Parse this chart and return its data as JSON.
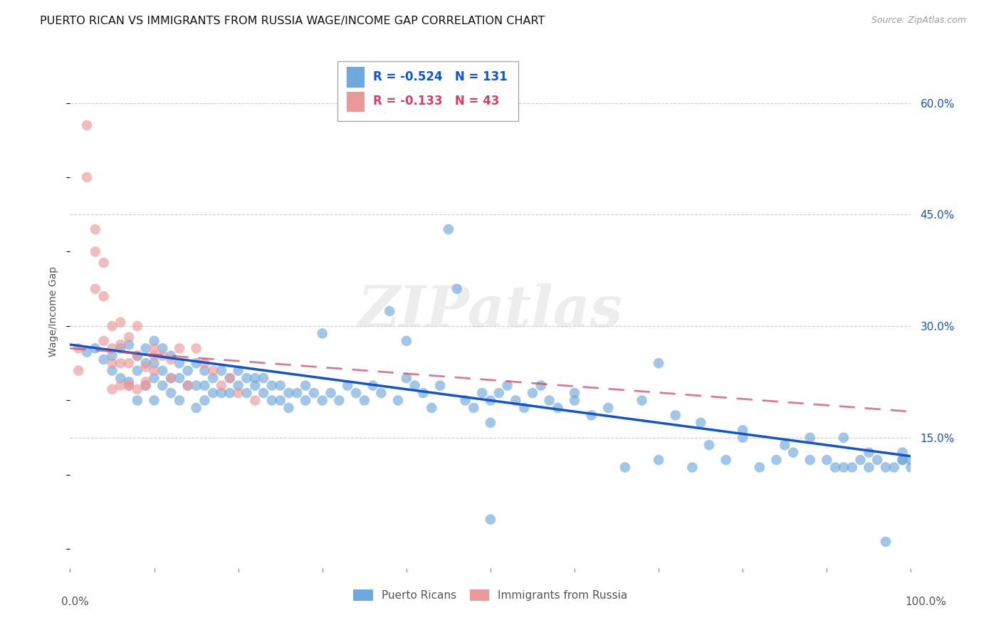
{
  "title": "PUERTO RICAN VS IMMIGRANTS FROM RUSSIA WAGE/INCOME GAP CORRELATION CHART",
  "source": "Source: ZipAtlas.com",
  "ylabel": "Wage/Income Gap",
  "watermark": "ZIPatlas",
  "right_yticks": [
    "60.0%",
    "45.0%",
    "30.0%",
    "15.0%"
  ],
  "right_ytick_vals": [
    0.6,
    0.45,
    0.3,
    0.15
  ],
  "xmin": 0.0,
  "xmax": 1.0,
  "ymin": -0.03,
  "ymax": 0.67,
  "blue_R": -0.524,
  "blue_N": 131,
  "pink_R": -0.133,
  "pink_N": 43,
  "legend_label_blue": "Puerto Ricans",
  "legend_label_pink": "Immigrants from Russia",
  "blue_color": "#6fa8dc",
  "pink_color": "#ea9999",
  "trendline_blue_color": "#1155cc",
  "trendline_pink_color": "#cc4466",
  "grid_color": "#cccccc",
  "background_color": "#ffffff",
  "title_fontsize": 11.5,
  "source_fontsize": 9,
  "blue_scatter_x": [
    0.02,
    0.03,
    0.04,
    0.05,
    0.05,
    0.06,
    0.06,
    0.07,
    0.07,
    0.08,
    0.08,
    0.08,
    0.09,
    0.09,
    0.09,
    0.1,
    0.1,
    0.1,
    0.1,
    0.11,
    0.11,
    0.11,
    0.12,
    0.12,
    0.12,
    0.13,
    0.13,
    0.13,
    0.14,
    0.14,
    0.15,
    0.15,
    0.15,
    0.16,
    0.16,
    0.16,
    0.17,
    0.17,
    0.18,
    0.18,
    0.19,
    0.19,
    0.2,
    0.2,
    0.21,
    0.21,
    0.22,
    0.22,
    0.23,
    0.23,
    0.24,
    0.24,
    0.25,
    0.25,
    0.26,
    0.26,
    0.27,
    0.28,
    0.28,
    0.29,
    0.3,
    0.3,
    0.31,
    0.32,
    0.33,
    0.34,
    0.35,
    0.36,
    0.37,
    0.38,
    0.39,
    0.4,
    0.4,
    0.41,
    0.42,
    0.43,
    0.44,
    0.45,
    0.46,
    0.47,
    0.48,
    0.49,
    0.5,
    0.51,
    0.52,
    0.53,
    0.54,
    0.55,
    0.56,
    0.57,
    0.58,
    0.6,
    0.62,
    0.64,
    0.66,
    0.68,
    0.7,
    0.72,
    0.74,
    0.76,
    0.78,
    0.8,
    0.82,
    0.84,
    0.86,
    0.88,
    0.9,
    0.91,
    0.92,
    0.93,
    0.94,
    0.95,
    0.96,
    0.97,
    0.98,
    0.99,
    0.99,
    0.99,
    1.0,
    1.0,
    0.5,
    0.7,
    0.75,
    0.8,
    0.85,
    0.88,
    0.92,
    0.95,
    0.97,
    0.5,
    0.6
  ],
  "blue_scatter_y": [
    0.265,
    0.27,
    0.255,
    0.26,
    0.24,
    0.27,
    0.23,
    0.275,
    0.225,
    0.26,
    0.24,
    0.2,
    0.27,
    0.25,
    0.22,
    0.28,
    0.25,
    0.23,
    0.2,
    0.27,
    0.24,
    0.22,
    0.26,
    0.23,
    0.21,
    0.25,
    0.23,
    0.2,
    0.24,
    0.22,
    0.25,
    0.22,
    0.19,
    0.24,
    0.22,
    0.2,
    0.23,
    0.21,
    0.24,
    0.21,
    0.23,
    0.21,
    0.24,
    0.22,
    0.23,
    0.21,
    0.23,
    0.22,
    0.23,
    0.21,
    0.22,
    0.2,
    0.22,
    0.2,
    0.21,
    0.19,
    0.21,
    0.22,
    0.2,
    0.21,
    0.29,
    0.2,
    0.21,
    0.2,
    0.22,
    0.21,
    0.2,
    0.22,
    0.21,
    0.32,
    0.2,
    0.28,
    0.23,
    0.22,
    0.21,
    0.19,
    0.22,
    0.43,
    0.35,
    0.2,
    0.19,
    0.21,
    0.04,
    0.21,
    0.22,
    0.2,
    0.19,
    0.21,
    0.22,
    0.2,
    0.19,
    0.2,
    0.18,
    0.19,
    0.11,
    0.2,
    0.12,
    0.18,
    0.11,
    0.14,
    0.12,
    0.16,
    0.11,
    0.12,
    0.13,
    0.12,
    0.12,
    0.11,
    0.11,
    0.11,
    0.12,
    0.11,
    0.12,
    0.11,
    0.11,
    0.12,
    0.13,
    0.12,
    0.11,
    0.12,
    0.2,
    0.25,
    0.17,
    0.15,
    0.14,
    0.15,
    0.15,
    0.13,
    0.01,
    0.17,
    0.21
  ],
  "pink_scatter_x": [
    0.01,
    0.01,
    0.02,
    0.02,
    0.03,
    0.03,
    0.03,
    0.04,
    0.04,
    0.04,
    0.05,
    0.05,
    0.05,
    0.06,
    0.06,
    0.06,
    0.06,
    0.07,
    0.07,
    0.07,
    0.08,
    0.08,
    0.09,
    0.09,
    0.1,
    0.1,
    0.11,
    0.12,
    0.13,
    0.14,
    0.15,
    0.16,
    0.17,
    0.18,
    0.19,
    0.2,
    0.22,
    0.08,
    0.09,
    0.1,
    0.12,
    0.05,
    0.07
  ],
  "pink_scatter_y": [
    0.27,
    0.24,
    0.57,
    0.5,
    0.43,
    0.4,
    0.35,
    0.385,
    0.34,
    0.28,
    0.3,
    0.27,
    0.25,
    0.305,
    0.275,
    0.25,
    0.22,
    0.285,
    0.25,
    0.22,
    0.3,
    0.26,
    0.245,
    0.22,
    0.27,
    0.24,
    0.26,
    0.255,
    0.27,
    0.22,
    0.27,
    0.25,
    0.24,
    0.22,
    0.23,
    0.21,
    0.2,
    0.215,
    0.225,
    0.26,
    0.23,
    0.215,
    0.22
  ]
}
